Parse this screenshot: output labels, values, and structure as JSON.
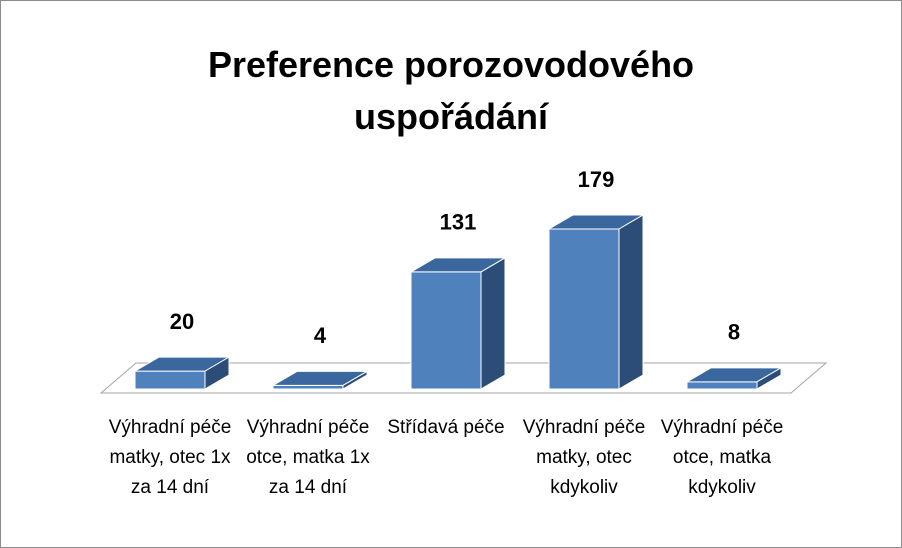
{
  "chart_data": {
    "type": "bar3d",
    "title": "Preference porozovodového uspořádání",
    "categories": [
      "Výhradní péče matky, otec 1x za 14 dní",
      "Výhradní péče otce, matka 1x za 14 dní",
      "Střídavá péče",
      "Výhradní péče matky, otec kdykoliv",
      "Výhradní péče otce, matka kdykoliv"
    ],
    "values": [
      20,
      4,
      131,
      179,
      8
    ],
    "color": "#4f81bd"
  }
}
